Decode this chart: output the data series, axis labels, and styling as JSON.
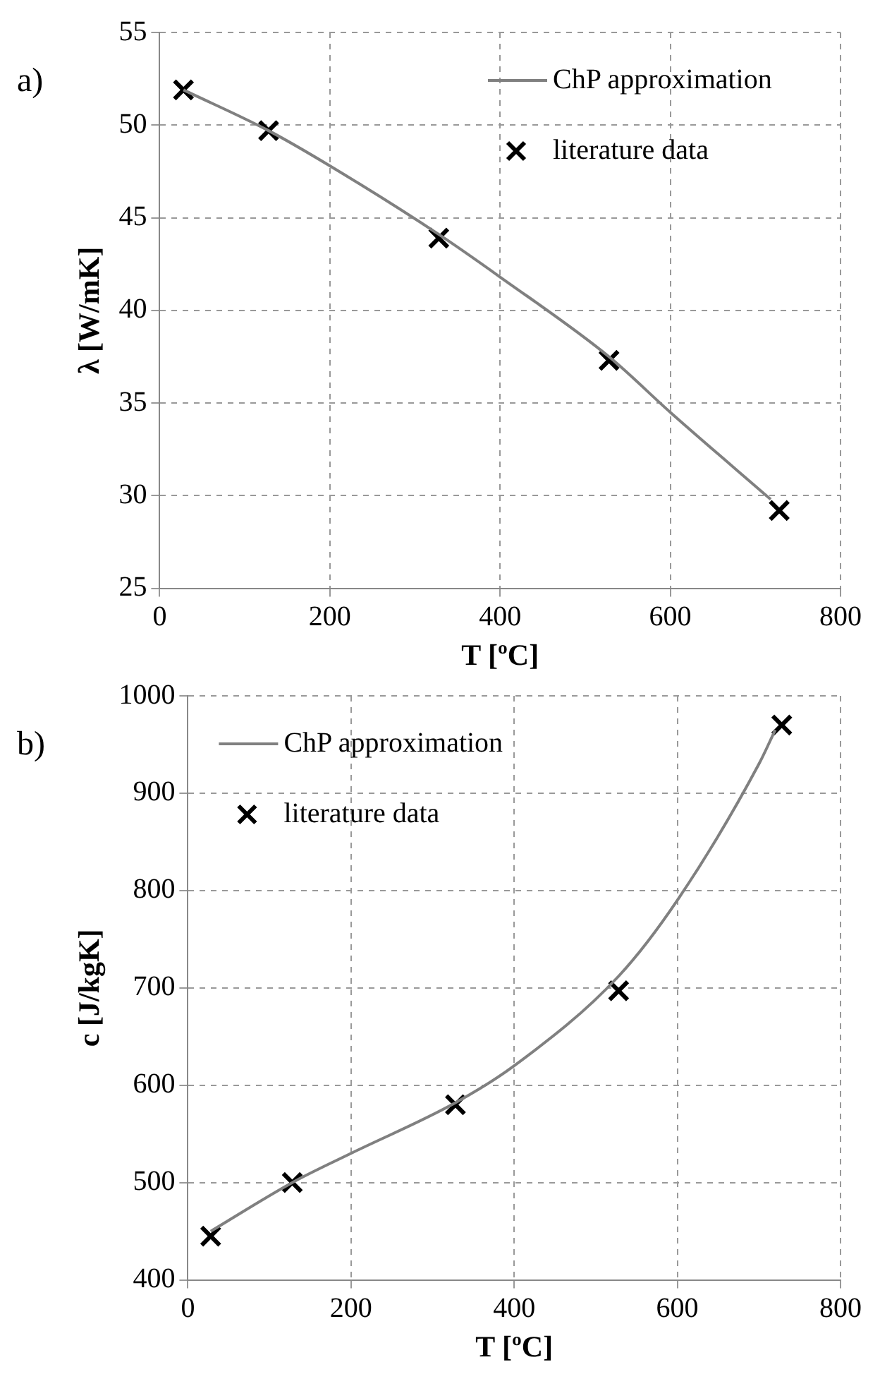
{
  "chart_data": [
    {
      "type": "scatter",
      "annotations": [
        "a)"
      ],
      "xlabel": "T [ºC]",
      "ylabel": "λ [W/mK]",
      "xlim": [
        0,
        800
      ],
      "xticks": [
        0,
        200,
        400,
        600,
        800
      ],
      "ylim": [
        25,
        55
      ],
      "yticks": [
        25,
        30,
        35,
        40,
        45,
        50,
        55
      ],
      "grid": true,
      "legend": "top right",
      "series": [
        {
          "name": "ChP approximation",
          "type": "line",
          "marker": "none",
          "color": "#808080",
          "x": [
            28,
            128,
            200,
            328,
            400,
            528,
            600,
            718
          ],
          "values": [
            51.9,
            49.7,
            47.8,
            44.1,
            41.8,
            37.5,
            34.5,
            29.8
          ]
        },
        {
          "name": "literature data",
          "marker": "cross",
          "color": "#000000",
          "x": [
            28,
            128,
            328,
            528,
            728
          ],
          "values": [
            51.9,
            49.7,
            43.9,
            37.3,
            29.2
          ]
        }
      ]
    },
    {
      "type": "scatter",
      "annotations": [
        "b)"
      ],
      "xlabel": "T [ºC]",
      "ylabel": "c [J/kgK]",
      "xlim": [
        0,
        800
      ],
      "xticks": [
        0,
        200,
        400,
        600,
        800
      ],
      "ylim": [
        400,
        1000
      ],
      "yticks": [
        400,
        500,
        600,
        700,
        800,
        900,
        1000
      ],
      "grid": true,
      "legend": "top left",
      "series": [
        {
          "name": "ChP approximation",
          "type": "line",
          "marker": "none",
          "color": "#808080",
          "x": [
            28,
            128,
            200,
            328,
            400,
            528,
            600,
            700,
            720
          ],
          "values": [
            450,
            500,
            530,
            582,
            620,
            712,
            790,
            930,
            965
          ]
        },
        {
          "name": "literature data",
          "marker": "cross",
          "color": "#000000",
          "x": [
            28,
            128,
            328,
            528,
            728
          ],
          "values": [
            445,
            500,
            580,
            697,
            970
          ]
        }
      ]
    }
  ]
}
